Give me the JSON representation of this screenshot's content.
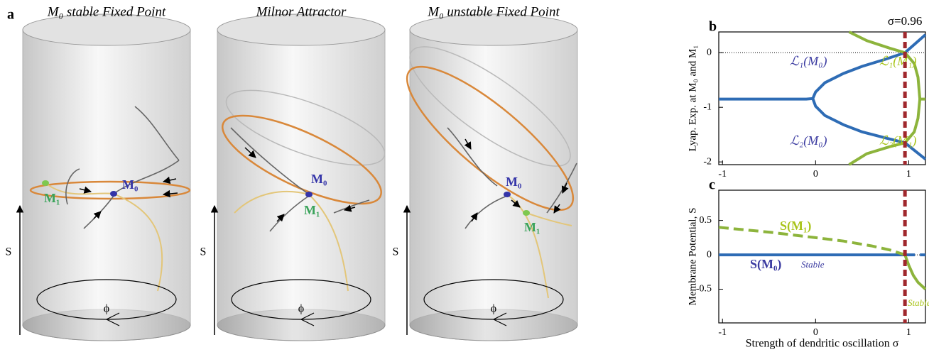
{
  "panel_a": {
    "label": "a",
    "panels": [
      {
        "title": "M₀ stable Fixed Point",
        "m0": "M₀",
        "m1": "M₁",
        "s": "S",
        "phi": "ϕ"
      },
      {
        "title": "Milnor Attractor",
        "m0": "M₀",
        "m1": "M₁",
        "s": "S",
        "phi": "ϕ"
      },
      {
        "title": "M₀ unstable Fixed Point",
        "m0": "M₀",
        "m1": "M₁",
        "s": "S",
        "phi": "ϕ"
      }
    ]
  },
  "chart_data": [
    {
      "type": "line",
      "label": "b",
      "y_label": "Lyap. Exp. at M₀ and M₁",
      "xlim": [
        -1.04,
        1.18
      ],
      "xticks": [
        -1,
        0,
        1
      ],
      "ylim": [
        -2.05,
        0.38
      ],
      "yticks": [
        -2,
        -1,
        0
      ],
      "reference_y": 0,
      "marker_line": {
        "x": 0.96,
        "label": "σ=0.96",
        "color": "#a0282d"
      },
      "series": [
        {
          "name": "ℒ₁(M₀)",
          "color": "#2e6cb5",
          "label_color": "#3a3aa0",
          "x": [
            -1.04,
            -0.1,
            -0.03,
            0,
            0.1,
            0.3,
            0.5,
            0.75,
            0.96,
            1.18
          ],
          "values": [
            -0.85,
            -0.85,
            -0.84,
            -0.72,
            -0.55,
            -0.38,
            -0.25,
            -0.12,
            0,
            0.33
          ]
        },
        {
          "name": "ℒ₂(M₀)",
          "color": "#2e6cb5",
          "label_color": "#3a3aa0",
          "x": [
            -0.03,
            0,
            0.1,
            0.3,
            0.5,
            0.75,
            0.96,
            1.18
          ],
          "values": [
            -0.84,
            -0.98,
            -1.15,
            -1.32,
            -1.45,
            -1.56,
            -1.65,
            -1.95
          ]
        },
        {
          "name": "ℒ₁(M₁)",
          "color": "#8db43c",
          "label_color": "#a9c41a",
          "x": [
            0.36,
            0.55,
            0.8,
            0.96,
            1.06,
            1.1,
            1.12,
            1.18
          ],
          "values": [
            0.38,
            0.22,
            0.08,
            0,
            -0.2,
            -0.45,
            -0.85,
            -0.85
          ]
        },
        {
          "name": "ℒ₂(M₁)",
          "color": "#8db43c",
          "label_color": "#a9c41a",
          "x": [
            0.36,
            0.55,
            0.8,
            0.96,
            1.06,
            1.1,
            1.12
          ],
          "values": [
            -2.05,
            -1.85,
            -1.72,
            -1.65,
            -1.45,
            -1.2,
            -0.85
          ]
        }
      ]
    },
    {
      "type": "line",
      "label": "c",
      "y_label": "Membrane Potential, S",
      "x_label": "Strength of dendritic oscillation σ",
      "xlim": [
        -1.04,
        1.18
      ],
      "xticks": [
        -1,
        0,
        1
      ],
      "ylim": [
        -0.99,
        0.94
      ],
      "yticks": [
        -0.5,
        0,
        0.5
      ],
      "reference_y": 0,
      "marker_line": {
        "x": 0.96,
        "color": "#a0282d"
      },
      "series": [
        {
          "name": "S(M₀)",
          "color": "#2e6cb5",
          "label_color": "#3a3aa0",
          "x": [
            -1.04,
            0.96
          ],
          "values": [
            0,
            0
          ]
        },
        {
          "color": "#2e6cb5",
          "dashed": true,
          "x": [
            0.96,
            1.18
          ],
          "values": [
            0,
            0
          ]
        },
        {
          "name": "S(M₁)",
          "color": "#8db43c",
          "label_color": "#a9c41a",
          "dashed": true,
          "x": [
            -1.04,
            -0.5,
            0,
            0.3,
            0.6,
            0.8,
            0.96
          ],
          "values": [
            0.4,
            0.33,
            0.25,
            0.2,
            0.13,
            0.07,
            0
          ]
        },
        {
          "color": "#8db43c",
          "x": [
            0.96,
            1.0,
            1.05,
            1.1,
            1.18
          ],
          "values": [
            0,
            -0.15,
            -0.3,
            -0.4,
            -0.5
          ]
        }
      ],
      "annotations": [
        {
          "text": "Stable",
          "color": "#3a3aa0"
        },
        {
          "text": "Stable",
          "color": "#a9c41a"
        }
      ]
    }
  ]
}
